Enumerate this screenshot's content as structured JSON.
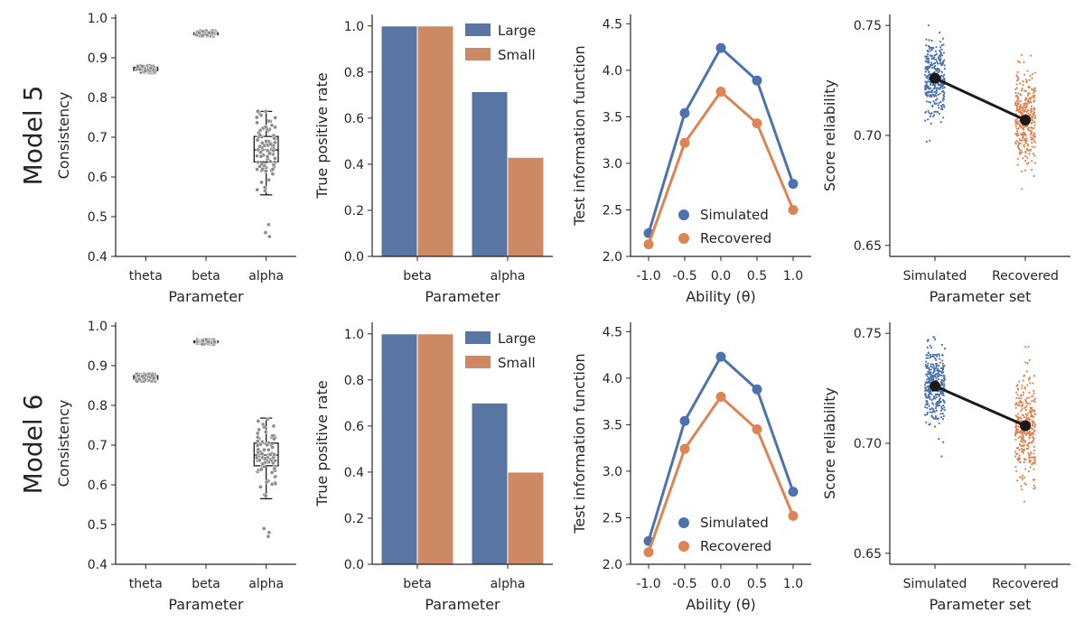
{
  "figure": {
    "rows": [
      {
        "title": "Model 5"
      },
      {
        "title": "Model 6"
      }
    ]
  },
  "colors": {
    "blue": "#4c72b0",
    "orange": "#dd8452",
    "bar_blue": "#5875a4",
    "bar_orange": "#cc8963",
    "point_gray": "#8c8c8c",
    "mean_black": "#1a1a1a"
  },
  "chart_data": [
    {
      "panel": "row1-consistency",
      "type": "box-strip",
      "xlabel": "Parameter",
      "ylabel": "Consistency",
      "categories": [
        "theta",
        "beta",
        "alpha"
      ],
      "ylim": [
        0.4,
        1.0
      ],
      "yticks": [
        "0.4",
        "0.5",
        "0.6",
        "0.7",
        "0.8",
        "0.9",
        "1.0"
      ],
      "boxes": [
        {
          "category": "theta",
          "q1": 0.868,
          "median": 0.872,
          "q3": 0.876,
          "whisker_low": 0.862,
          "whisker_high": 0.88,
          "outliers": []
        },
        {
          "category": "beta",
          "q1": 0.958,
          "median": 0.961,
          "q3": 0.963,
          "whisker_low": 0.954,
          "whisker_high": 0.968,
          "outliers": []
        },
        {
          "category": "alpha",
          "q1": 0.638,
          "median": 0.668,
          "q3": 0.702,
          "whisker_low": 0.555,
          "whisker_high": 0.765,
          "outliers": [
            0.48,
            0.46,
            0.45
          ]
        }
      ]
    },
    {
      "panel": "row1-tpr",
      "type": "bar",
      "xlabel": "Parameter",
      "ylabel": "True positive rate",
      "categories": [
        "beta",
        "alpha"
      ],
      "ylim": [
        0.0,
        1.05
      ],
      "yticks": [
        "0.0",
        "0.2",
        "0.4",
        "0.6",
        "0.8",
        "1.0"
      ],
      "series": [
        {
          "name": "Large",
          "values": [
            1.0,
            0.715
          ]
        },
        {
          "name": "Small",
          "values": [
            1.0,
            0.43
          ]
        }
      ],
      "legend": "top-right"
    },
    {
      "panel": "row1-info",
      "type": "line",
      "xlabel": "Ability (θ)",
      "ylabel": "Test information function",
      "x": [
        -1.0,
        -0.5,
        0.0,
        0.5,
        1.0
      ],
      "xticks": [
        "-1.0",
        "-0.5",
        "0.0",
        "0.5",
        "1.0"
      ],
      "ylim": [
        2.0,
        4.6
      ],
      "yticks": [
        "2.0",
        "2.5",
        "3.0",
        "3.5",
        "4.0",
        "4.5"
      ],
      "series": [
        {
          "name": "Simulated",
          "values": [
            2.25,
            3.54,
            4.24,
            3.89,
            2.78
          ]
        },
        {
          "name": "Recovered",
          "values": [
            2.13,
            3.22,
            3.77,
            3.43,
            2.5
          ]
        }
      ],
      "legend": "lower-center"
    },
    {
      "panel": "row1-reliability",
      "type": "scatter",
      "xlabel": "Parameter set",
      "ylabel": "Score reliability",
      "categories": [
        "Simulated",
        "Recovered"
      ],
      "ylim": [
        0.645,
        0.755
      ],
      "yticks": [
        "0.65",
        "0.70",
        "0.75"
      ],
      "means": [
        0.726,
        0.707
      ],
      "spread": [
        {
          "center": 0.726,
          "sd": 0.0085,
          "min": 0.691,
          "max": 0.75
        },
        {
          "center": 0.707,
          "sd": 0.011,
          "min": 0.653,
          "max": 0.751
        }
      ]
    },
    {
      "panel": "row2-consistency",
      "type": "box-strip",
      "xlabel": "Parameter",
      "ylabel": "Consistency",
      "categories": [
        "theta",
        "beta",
        "alpha"
      ],
      "ylim": [
        0.4,
        1.0
      ],
      "yticks": [
        "0.4",
        "0.5",
        "0.6",
        "0.7",
        "0.8",
        "0.9",
        "1.0"
      ],
      "boxes": [
        {
          "category": "theta",
          "q1": 0.866,
          "median": 0.871,
          "q3": 0.875,
          "whisker_low": 0.861,
          "whisker_high": 0.879,
          "outliers": []
        },
        {
          "category": "beta",
          "q1": 0.958,
          "median": 0.96,
          "q3": 0.962,
          "whisker_low": 0.954,
          "whisker_high": 0.967,
          "outliers": []
        },
        {
          "category": "alpha",
          "q1": 0.648,
          "median": 0.675,
          "q3": 0.705,
          "whisker_low": 0.565,
          "whisker_high": 0.768,
          "outliers": [
            0.49,
            0.48,
            0.47
          ]
        }
      ]
    },
    {
      "panel": "row2-tpr",
      "type": "bar",
      "xlabel": "Parameter",
      "ylabel": "True positive rate",
      "categories": [
        "beta",
        "alpha"
      ],
      "ylim": [
        0.0,
        1.05
      ],
      "yticks": [
        "0.0",
        "0.2",
        "0.4",
        "0.6",
        "0.8",
        "1.0"
      ],
      "series": [
        {
          "name": "Large",
          "values": [
            1.0,
            0.7
          ]
        },
        {
          "name": "Small",
          "values": [
            1.0,
            0.4
          ]
        }
      ],
      "legend": "top-right"
    },
    {
      "panel": "row2-info",
      "type": "line",
      "xlabel": "Ability (θ)",
      "ylabel": "Test information function",
      "x": [
        -1.0,
        -0.5,
        0.0,
        0.5,
        1.0
      ],
      "xticks": [
        "-1.0",
        "-0.5",
        "0.0",
        "0.5",
        "1.0"
      ],
      "ylim": [
        2.0,
        4.6
      ],
      "yticks": [
        "2.0",
        "2.5",
        "3.0",
        "3.5",
        "4.0",
        "4.5"
      ],
      "series": [
        {
          "name": "Simulated",
          "values": [
            2.25,
            3.54,
            4.23,
            3.88,
            2.78
          ]
        },
        {
          "name": "Recovered",
          "values": [
            2.13,
            3.24,
            3.8,
            3.45,
            2.52
          ]
        }
      ],
      "legend": "lower-center"
    },
    {
      "panel": "row2-reliability",
      "type": "scatter",
      "xlabel": "Parameter set",
      "ylabel": "Score reliability",
      "categories": [
        "Simulated",
        "Recovered"
      ],
      "ylim": [
        0.645,
        0.755
      ],
      "yticks": [
        "0.65",
        "0.70",
        "0.75"
      ],
      "means": [
        0.726,
        0.708
      ],
      "spread": [
        {
          "center": 0.726,
          "sd": 0.0085,
          "min": 0.691,
          "max": 0.75
        },
        {
          "center": 0.708,
          "sd": 0.011,
          "min": 0.652,
          "max": 0.744
        }
      ]
    }
  ]
}
